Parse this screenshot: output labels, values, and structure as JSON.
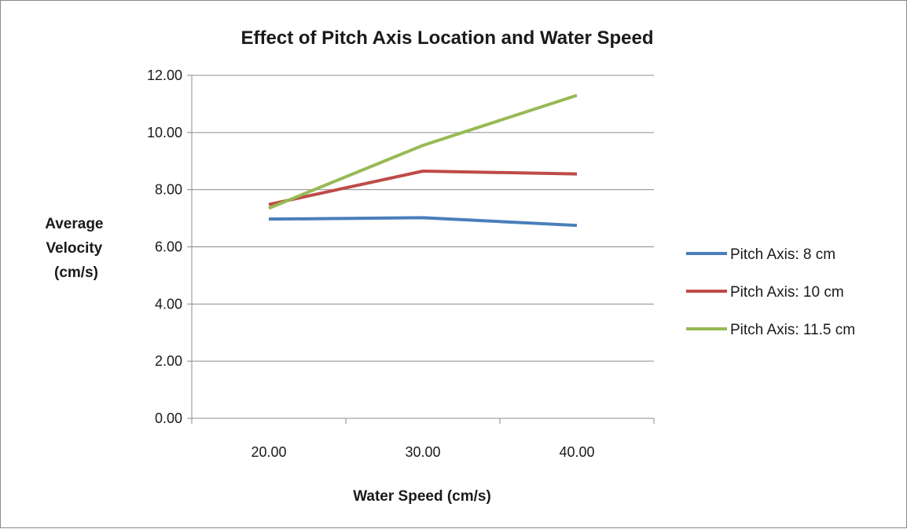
{
  "chart_data": {
    "type": "line",
    "title": "Effect of Pitch Axis Location and Water Speed",
    "xlabel": "Water Speed (cm/s)",
    "ylabel": [
      "Average",
      "Velocity",
      "(cm/s)"
    ],
    "x": [
      20,
      30,
      40
    ],
    "x_tick_labels": [
      "20.00",
      "30.00",
      "40.00"
    ],
    "xlim": [
      15,
      45
    ],
    "ylim": [
      0,
      12
    ],
    "y_ticks": [
      0,
      2,
      4,
      6,
      8,
      10,
      12
    ],
    "y_tick_labels": [
      "0.00",
      "2.00",
      "4.00",
      "6.00",
      "8.00",
      "10.00",
      "12.00"
    ],
    "grid": "horizontal",
    "legend_position": "right",
    "series": [
      {
        "name": "Pitch Axis: 8 cm",
        "color": "#4a7ebb",
        "values": [
          6.97,
          7.02,
          6.75
        ]
      },
      {
        "name": "Pitch Axis: 10 cm",
        "color": "#be4b48",
        "values": [
          7.48,
          8.65,
          8.55
        ]
      },
      {
        "name": "Pitch Axis: 11.5 cm",
        "color": "#98b954",
        "values": [
          7.35,
          9.55,
          11.3
        ]
      }
    ]
  }
}
